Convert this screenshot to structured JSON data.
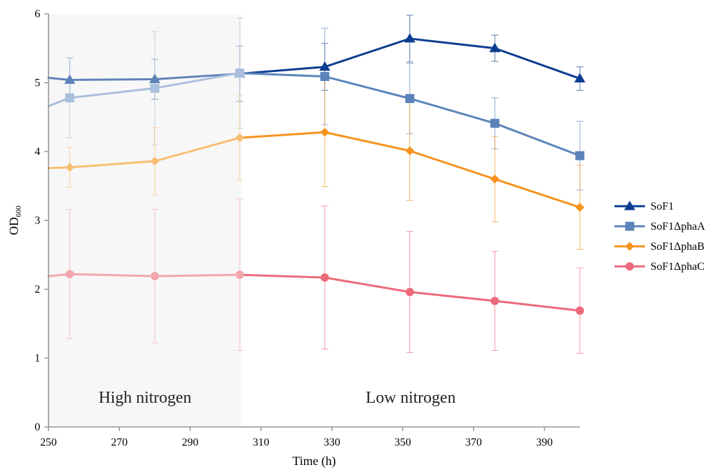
{
  "chart_data": {
    "type": "line",
    "title": "",
    "xlabel": "Time (h)",
    "ylabel_main": "OD",
    "ylabel_sub": "600",
    "xlim": [
      250,
      400
    ],
    "ylim": [
      0,
      6
    ],
    "x_ticks": [
      "250",
      "270",
      "290",
      "310",
      "330",
      "350",
      "370",
      "390"
    ],
    "y_ticks": [
      "0",
      "1",
      "2",
      "3",
      "4",
      "5",
      "6"
    ],
    "grid": false,
    "legend_position": "right",
    "regions": [
      {
        "label": "High nitrogen",
        "x_start": 250,
        "x_end": 304.5,
        "fill": "#f7f7f7"
      },
      {
        "label": "Low nitrogen",
        "x_start": 304.5,
        "x_end": 400,
        "fill": "#ffffff"
      }
    ],
    "series": [
      {
        "name": "SoF1",
        "color": "#0a3d91",
        "faded_color": "#5f82b8",
        "marker": "triangle",
        "x": [
          250,
          256,
          280,
          304,
          328,
          352,
          376,
          400
        ],
        "y": [
          5.07,
          5.04,
          5.05,
          5.13,
          5.23,
          5.64,
          5.5,
          5.06
        ],
        "err": [
          0,
          0.32,
          0.29,
          0.4,
          0.34,
          0.34,
          0.19,
          0.17
        ]
      },
      {
        "name": "SoF1ΔphaA",
        "color": "#5b84ba",
        "faded_color": "#a9bfdd",
        "marker": "square",
        "x": [
          250,
          256,
          280,
          304,
          328,
          352,
          376,
          400
        ],
        "y": [
          4.66,
          4.78,
          4.92,
          5.14,
          5.09,
          4.77,
          4.41,
          3.94
        ],
        "err": [
          0,
          0.58,
          0.82,
          0.8,
          0.7,
          0.51,
          0.37,
          0.5
        ]
      },
      {
        "name": "SoF1ΔphaB",
        "color": "#f7931e",
        "faded_color": "#f8be72",
        "marker": "diamond",
        "x": [
          250,
          256,
          280,
          304,
          328,
          352,
          376,
          400
        ],
        "y": [
          3.76,
          3.77,
          3.86,
          4.2,
          4.28,
          4.01,
          3.6,
          3.19
        ],
        "err": [
          0,
          0.29,
          0.49,
          0.61,
          0.79,
          0.72,
          0.62,
          0.61
        ]
      },
      {
        "name": "SoF1ΔphaC",
        "color": "#ec6a7a",
        "faded_color": "#f3a6ae",
        "marker": "circle",
        "x": [
          250,
          256,
          280,
          304,
          328,
          352,
          376,
          400
        ],
        "y": [
          2.19,
          2.22,
          2.19,
          2.21,
          2.17,
          1.96,
          1.83,
          1.69
        ],
        "err": [
          0,
          0.94,
          0.97,
          1.1,
          1.04,
          0.88,
          0.72,
          0.62
        ]
      }
    ]
  }
}
